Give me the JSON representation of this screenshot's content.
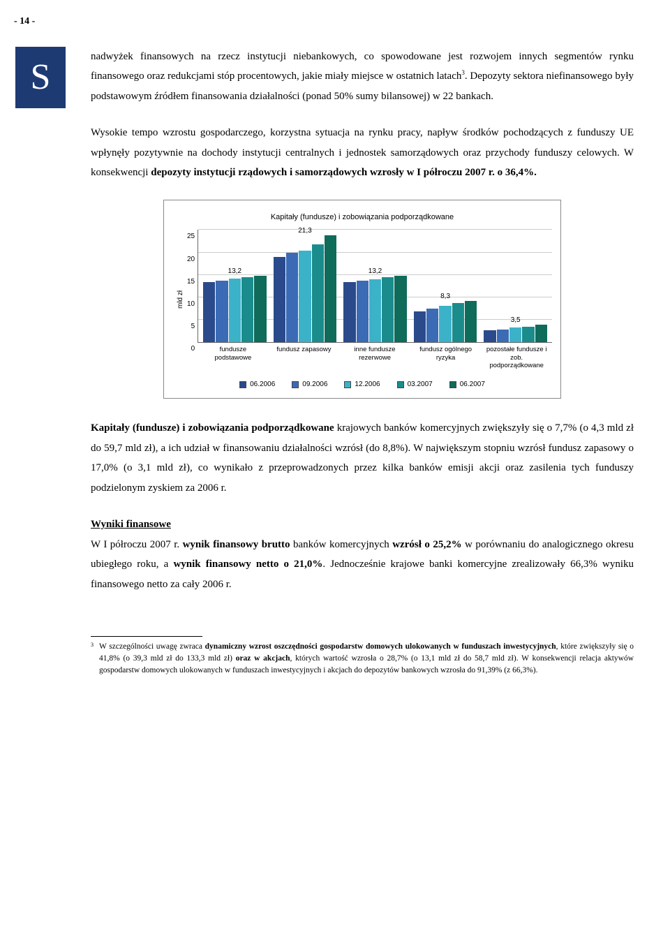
{
  "page_number": "- 14 -",
  "s_letter": "S",
  "para1": "nadwyżek finansowych na rzecz instytucji niebankowych, co spowodowane jest rozwojem innych segmentów rynku finansowego oraz redukcjami stóp procentowych, jakie miały miejsce w ostatnich latach",
  "para1_sup": "3",
  "para1_tail": ". Depozyty sektora niefinansowego były podstawowym źródłem finansowania działalności (ponad 50% sumy bilansowej) w 22 bankach.",
  "para2_a": "Wysokie tempo wzrostu gospodarczego, korzystna sytuacja na rynku pracy, napływ środków pochodzących z funduszy UE wpłynęły pozytywnie na dochody instytucji centralnych i jednostek samorządowych oraz przychody funduszy celowych. W konsekwencji ",
  "para2_b": "depozyty instytucji rządowych i samorządowych wzrosły w I półroczu 2007 r. o 36,4%.",
  "chart": {
    "title": "Kapitały (fundusze) i zobowiązania podporządkowane",
    "ylabel": "mld zł",
    "ymax": 25,
    "ytick_step": 5,
    "yticks": [
      "25",
      "20",
      "15",
      "10",
      "5",
      "0"
    ],
    "categories": [
      "fundusze podstawowe",
      "fundusz zapasowy",
      "inne fundusze rezerwowe",
      "fundusz ogólnego ryzyka",
      "pozostałe fundusze i zob. podporządkowane"
    ],
    "series_labels": [
      "06.2006",
      "09.2006",
      "12.2006",
      "03.2007",
      "06.2007"
    ],
    "series_colors": [
      "#2a4a8c",
      "#3b6bb5",
      "#3cb2c9",
      "#1b8c8c",
      "#0f6b5a"
    ],
    "values": [
      [
        12.0,
        12.3,
        12.7,
        13.0,
        13.2
      ],
      [
        17.0,
        17.8,
        18.2,
        19.5,
        21.3
      ],
      [
        12.0,
        12.2,
        12.6,
        13.0,
        13.2
      ],
      [
        6.2,
        6.7,
        7.2,
        7.8,
        8.3
      ],
      [
        2.4,
        2.6,
        2.9,
        3.1,
        3.5
      ]
    ],
    "top_labels": [
      "13,2",
      "21,3",
      "13,2",
      "8,3",
      "3,5"
    ]
  },
  "para3_a": "Kapitały (fundusze) i zobowiązania podporządkowane",
  "para3_b": " krajowych banków komercyjnych zwiększyły się o 7,7% (o 4,3 mld zł do 59,7 mld zł), a ich udział w finansowaniu działalności wzrósł (do 8,8%). W największym stopniu wzrósł fundusz zapasowy o 17,0% (o 3,1 mld zł), co wynikało z przeprowadzonych przez kilka banków emisji akcji oraz zasilenia tych funduszy podzielonym zyskiem za 2006 r.",
  "heading_wyniki": "Wyniki finansowe",
  "para4_a": "W I półroczu 2007 r. ",
  "para4_b": "wynik finansowy brutto",
  "para4_c": " banków komercyjnych ",
  "para4_d": "wzrósł o 25,2%",
  "para4_e": " w porównaniu do analogicznego okresu ubiegłego roku, a ",
  "para4_f": "wynik finansowy netto o 21,0%",
  "para4_g": ". Jednocześnie krajowe banki komercyjne zrealizowały 66,3% wyniku finansowego netto za cały 2006 r.",
  "fn_marker": "3",
  "fn_a": "W szczególności uwagę zwraca ",
  "fn_b": "dynamiczny wzrost oszczędności gospodarstw domowych ulokowanych w funduszach inwestycyjnych",
  "fn_c": ", które zwiększyły się o 41,8% (o 39,3 mld zł do 133,3 mld zł) ",
  "fn_d": "oraz w akcjach",
  "fn_e": ", których wartość wzrosła o 28,7% (o 13,1 mld zł do 58,7 mld zł). W konsekwencji relacja aktywów gospodarstw domowych ulokowanych w funduszach inwestycyjnych i akcjach do depozytów bankowych wzrosła do 91,39% (z 66,3%)."
}
